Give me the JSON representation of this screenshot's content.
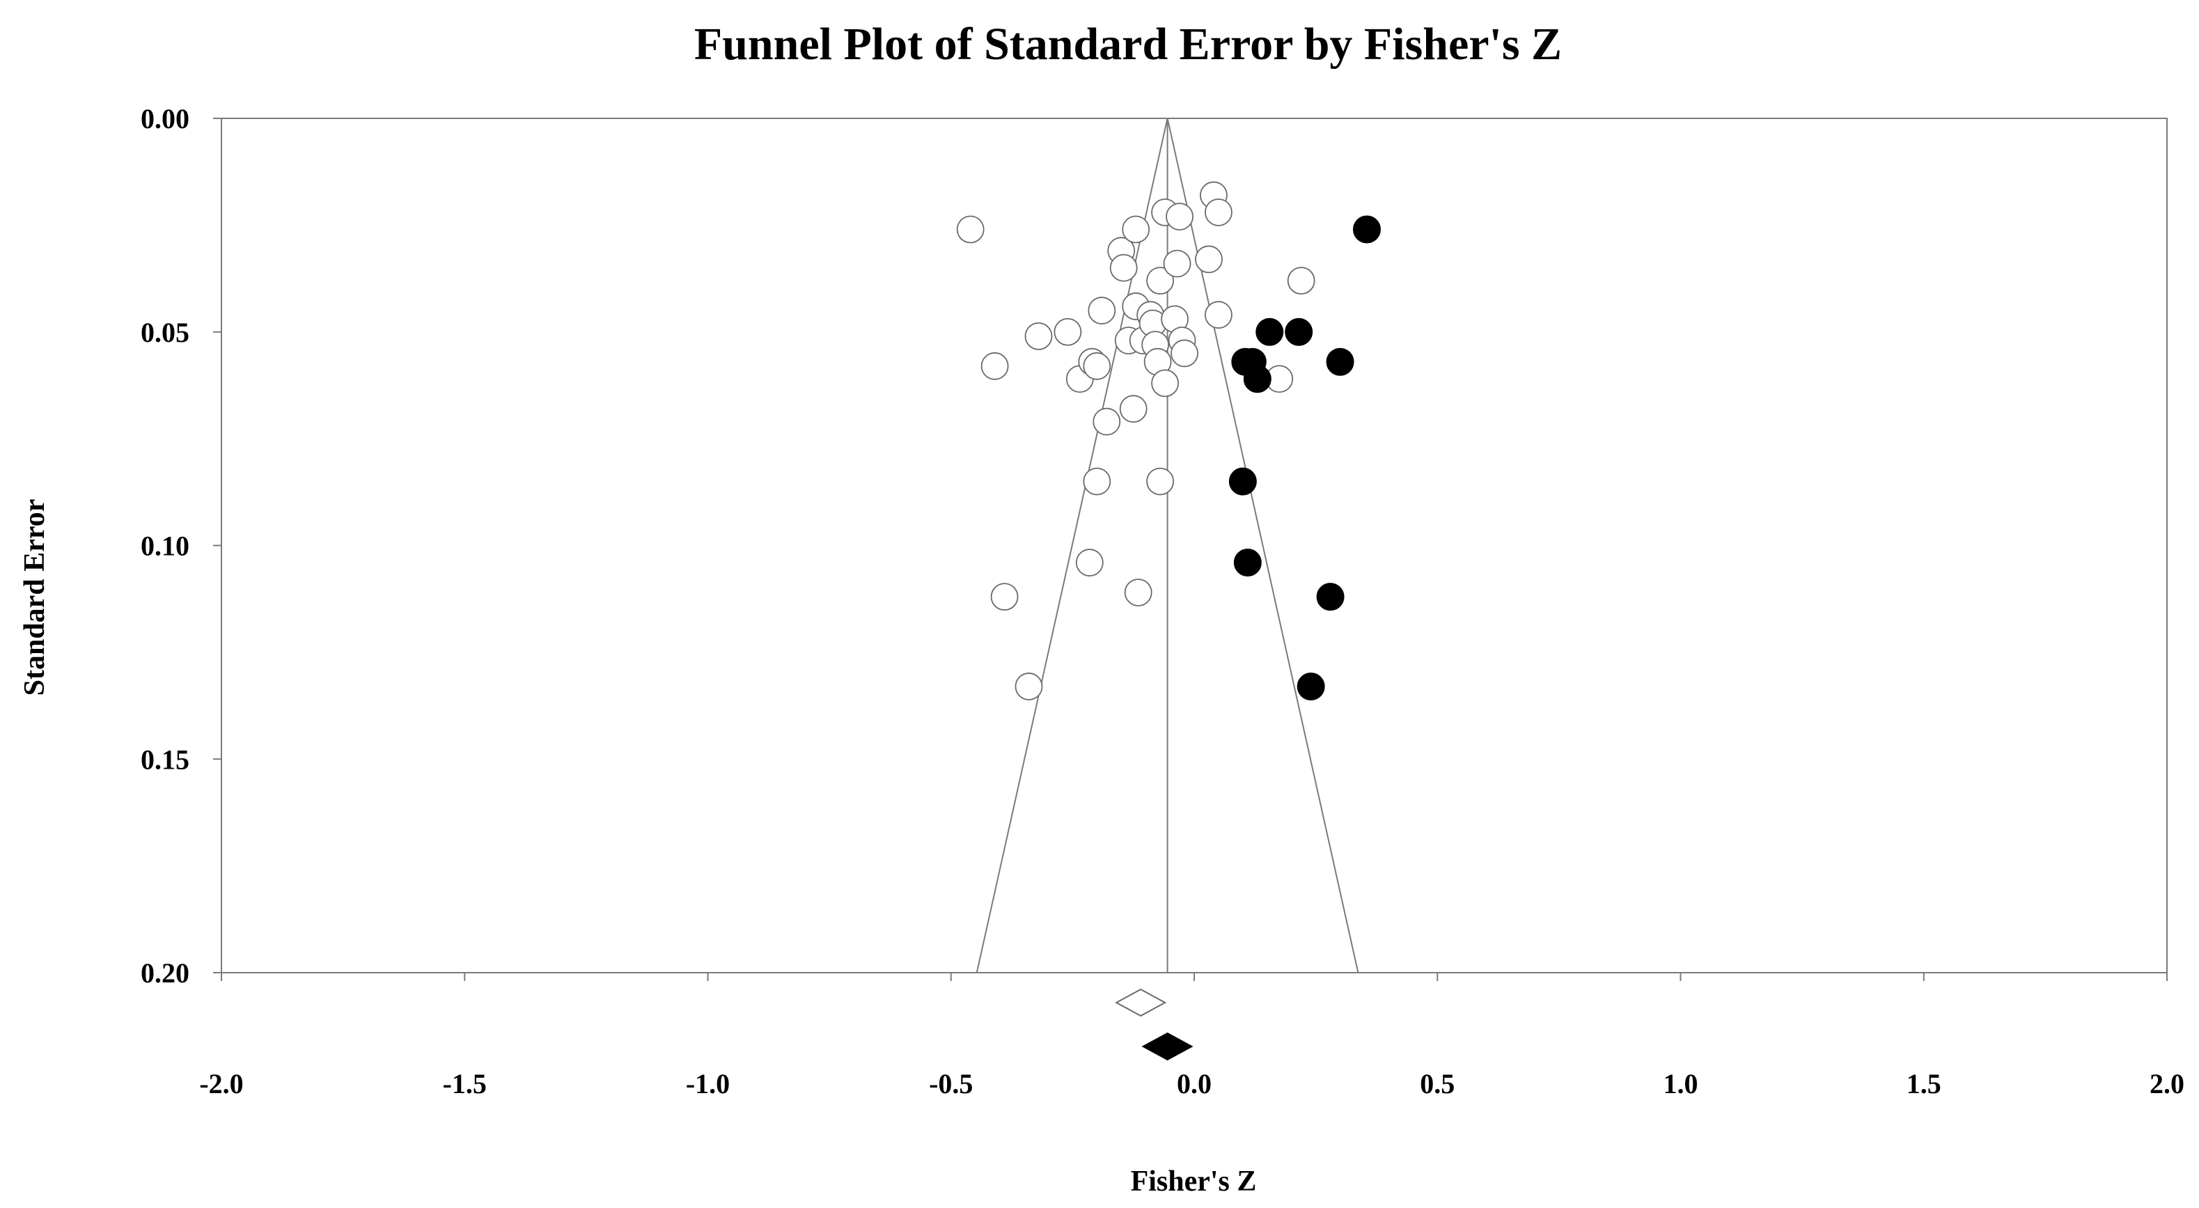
{
  "chart_data": {
    "type": "scatter",
    "title": "Funnel Plot of Standard Error by Fisher's Z",
    "xlabel": "Fisher's Z",
    "ylabel": "Standard Error",
    "xlim": [
      -2.0,
      2.0
    ],
    "ylim": [
      0.0,
      0.2
    ],
    "y_inverted": true,
    "x_ticks": [
      "-2.0",
      "-1.5",
      "-1.0",
      "-0.5",
      "0.0",
      "0.5",
      "1.0",
      "1.5",
      "2.0"
    ],
    "x_tick_values": [
      -2.0,
      -1.5,
      -1.0,
      -0.5,
      0.0,
      0.5,
      1.0,
      1.5,
      2.0
    ],
    "y_ticks": [
      "0.00",
      "0.05",
      "0.10",
      "0.15",
      "0.20"
    ],
    "y_tick_values": [
      0.0,
      0.05,
      0.1,
      0.15,
      0.2
    ],
    "grid": false,
    "center_line_x": -0.055,
    "funnel": {
      "apex": [
        -0.055,
        0.0
      ],
      "bottom_left": [
        -0.447,
        0.2
      ],
      "bottom_right": [
        0.337,
        0.2
      ]
    },
    "series": [
      {
        "marker": "open-circle",
        "points": [
          {
            "x": -0.46,
            "y": 0.026
          },
          {
            "x": -0.41,
            "y": 0.058
          },
          {
            "x": -0.39,
            "y": 0.112
          },
          {
            "x": -0.34,
            "y": 0.133
          },
          {
            "x": -0.32,
            "y": 0.051
          },
          {
            "x": -0.26,
            "y": 0.05
          },
          {
            "x": -0.235,
            "y": 0.061
          },
          {
            "x": -0.215,
            "y": 0.104
          },
          {
            "x": -0.21,
            "y": 0.057
          },
          {
            "x": -0.2,
            "y": 0.058
          },
          {
            "x": -0.2,
            "y": 0.085
          },
          {
            "x": -0.19,
            "y": 0.045
          },
          {
            "x": -0.18,
            "y": 0.071
          },
          {
            "x": -0.15,
            "y": 0.031
          },
          {
            "x": -0.145,
            "y": 0.035
          },
          {
            "x": -0.135,
            "y": 0.052
          },
          {
            "x": -0.125,
            "y": 0.068
          },
          {
            "x": -0.12,
            "y": 0.044
          },
          {
            "x": -0.12,
            "y": 0.026
          },
          {
            "x": -0.115,
            "y": 0.111
          },
          {
            "x": -0.105,
            "y": 0.052
          },
          {
            "x": -0.09,
            "y": 0.046
          },
          {
            "x": -0.085,
            "y": 0.048
          },
          {
            "x": -0.08,
            "y": 0.053
          },
          {
            "x": -0.075,
            "y": 0.057
          },
          {
            "x": -0.07,
            "y": 0.038
          },
          {
            "x": -0.07,
            "y": 0.085
          },
          {
            "x": -0.06,
            "y": 0.022
          },
          {
            "x": -0.06,
            "y": 0.062
          },
          {
            "x": -0.04,
            "y": 0.047
          },
          {
            "x": -0.035,
            "y": 0.034
          },
          {
            "x": -0.03,
            "y": 0.023
          },
          {
            "x": -0.025,
            "y": 0.052
          },
          {
            "x": -0.02,
            "y": 0.055
          },
          {
            "x": 0.03,
            "y": 0.033
          },
          {
            "x": 0.04,
            "y": 0.018
          },
          {
            "x": 0.05,
            "y": 0.046
          },
          {
            "x": 0.05,
            "y": 0.022
          },
          {
            "x": 0.175,
            "y": 0.061
          },
          {
            "x": 0.22,
            "y": 0.038
          }
        ]
      },
      {
        "marker": "filled-circle",
        "points": [
          {
            "x": 0.1,
            "y": 0.085
          },
          {
            "x": 0.105,
            "y": 0.057
          },
          {
            "x": 0.11,
            "y": 0.104
          },
          {
            "x": 0.12,
            "y": 0.057
          },
          {
            "x": 0.13,
            "y": 0.061
          },
          {
            "x": 0.155,
            "y": 0.05
          },
          {
            "x": 0.215,
            "y": 0.05
          },
          {
            "x": 0.24,
            "y": 0.133
          },
          {
            "x": 0.28,
            "y": 0.112
          },
          {
            "x": 0.3,
            "y": 0.057
          },
          {
            "x": 0.355,
            "y": 0.026
          }
        ]
      }
    ],
    "summary_diamonds": [
      {
        "marker": "open-diamond",
        "center": -0.11,
        "low": -0.16,
        "high": -0.06
      },
      {
        "marker": "filled-diamond",
        "center": -0.055,
        "low": -0.105,
        "high": -0.005
      }
    ]
  }
}
